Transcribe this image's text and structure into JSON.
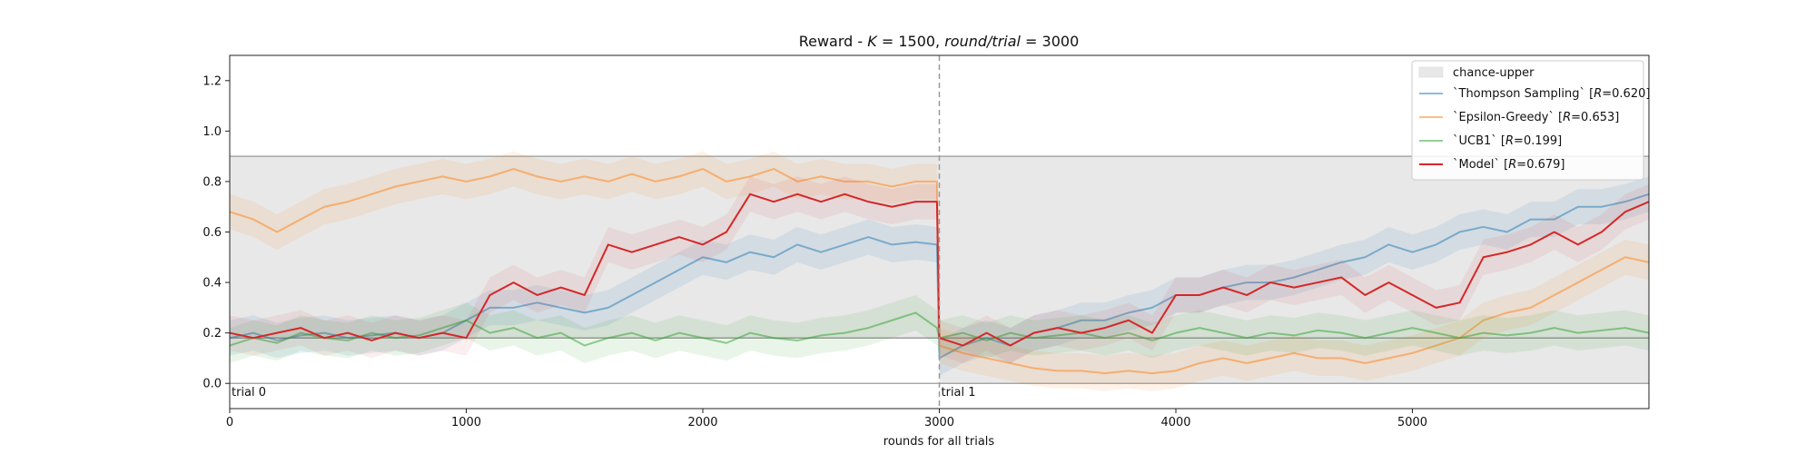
{
  "chart_data": {
    "type": "line",
    "title": "Reward - K = 1500, round/trial = 3000",
    "title_parts": {
      "prefix": "Reward - ",
      "k_var": "K",
      "k_val": " = 1500, ",
      "rt_var": "round/trial",
      "rt_val": " = 3000"
    },
    "xlabel": "rounds for all trials",
    "ylabel": "",
    "xlim": [
      0,
      6000
    ],
    "ylim": [
      -0.1,
      1.3
    ],
    "xticks": [
      0,
      1000,
      2000,
      3000,
      4000,
      5000
    ],
    "xtick_labels": [
      "0",
      "1000",
      "2000",
      "3000",
      "4000",
      "5000"
    ],
    "yticks": [
      0.0,
      0.2,
      0.4,
      0.6,
      0.8,
      1.0,
      1.2
    ],
    "ytick_labels": [
      "0.0",
      "0.2",
      "0.4",
      "0.6",
      "0.8",
      "1.0",
      "1.2"
    ],
    "grid": false,
    "legend_position": "top-right",
    "trial_boundaries": [
      0,
      3000
    ],
    "trial_labels": [
      "trial 0",
      "trial 1"
    ],
    "hlines": {
      "upper": 0.9,
      "lower": 0.0,
      "chance": 0.18
    },
    "band": {
      "name": "chance-upper",
      "from": 0.0,
      "to": 0.9,
      "start": 3000,
      "end": 6000,
      "fill_prefix_to": 0.18,
      "color": "#e8e8e8"
    },
    "series": [
      {
        "name": "`Thompson Sampling` [R=0.620]",
        "label_prefix": "`Thompson Sampling` [",
        "label_var": "R",
        "label_value": "=0.620]",
        "color": "#1f77b4",
        "x": [
          0,
          100,
          200,
          300,
          400,
          500,
          600,
          700,
          800,
          900,
          1000,
          1100,
          1200,
          1300,
          1400,
          1500,
          1600,
          1700,
          1800,
          1900,
          2000,
          2100,
          2200,
          2300,
          2400,
          2500,
          2600,
          2700,
          2800,
          2900,
          2990,
          3000,
          3100,
          3200,
          3300,
          3400,
          3500,
          3600,
          3700,
          3800,
          3900,
          4000,
          4100,
          4200,
          4300,
          4400,
          4500,
          4600,
          4700,
          4800,
          4900,
          5000,
          5100,
          5200,
          5300,
          5400,
          5500,
          5600,
          5700,
          5800,
          5900,
          6000
        ],
        "values": [
          0.18,
          0.2,
          0.17,
          0.19,
          0.2,
          0.18,
          0.19,
          0.2,
          0.18,
          0.2,
          0.25,
          0.3,
          0.3,
          0.32,
          0.3,
          0.28,
          0.3,
          0.35,
          0.4,
          0.45,
          0.5,
          0.48,
          0.52,
          0.5,
          0.55,
          0.52,
          0.55,
          0.58,
          0.55,
          0.56,
          0.55,
          0.1,
          0.15,
          0.18,
          0.15,
          0.2,
          0.22,
          0.25,
          0.25,
          0.28,
          0.3,
          0.35,
          0.35,
          0.38,
          0.4,
          0.4,
          0.42,
          0.45,
          0.48,
          0.5,
          0.55,
          0.52,
          0.55,
          0.6,
          0.62,
          0.6,
          0.65,
          0.65,
          0.7,
          0.7,
          0.72,
          0.75
        ]
      },
      {
        "name": "`Epsilon-Greedy` [R=0.653]",
        "label_prefix": "`Epsilon-Greedy` [",
        "label_var": "R",
        "label_value": "=0.653]",
        "color": "#ff7f0e",
        "x": [
          0,
          100,
          200,
          300,
          400,
          500,
          600,
          700,
          800,
          900,
          1000,
          1100,
          1200,
          1300,
          1400,
          1500,
          1600,
          1700,
          1800,
          1900,
          2000,
          2100,
          2200,
          2300,
          2400,
          2500,
          2600,
          2700,
          2800,
          2900,
          2990,
          3000,
          3100,
          3200,
          3300,
          3400,
          3500,
          3600,
          3700,
          3800,
          3900,
          4000,
          4100,
          4200,
          4300,
          4400,
          4500,
          4600,
          4700,
          4800,
          4900,
          5000,
          5100,
          5200,
          5300,
          5400,
          5500,
          5600,
          5700,
          5800,
          5900,
          6000
        ],
        "values": [
          0.68,
          0.65,
          0.6,
          0.65,
          0.7,
          0.72,
          0.75,
          0.78,
          0.8,
          0.82,
          0.8,
          0.82,
          0.85,
          0.82,
          0.8,
          0.82,
          0.8,
          0.83,
          0.8,
          0.82,
          0.85,
          0.8,
          0.82,
          0.85,
          0.8,
          0.82,
          0.8,
          0.8,
          0.78,
          0.8,
          0.8,
          0.15,
          0.12,
          0.1,
          0.08,
          0.06,
          0.05,
          0.05,
          0.04,
          0.05,
          0.04,
          0.05,
          0.08,
          0.1,
          0.08,
          0.1,
          0.12,
          0.1,
          0.1,
          0.08,
          0.1,
          0.12,
          0.15,
          0.18,
          0.25,
          0.28,
          0.3,
          0.35,
          0.4,
          0.45,
          0.5,
          0.48
        ]
      },
      {
        "name": "`UCB1` [R=0.199]",
        "label_prefix": "`UCB1` [",
        "label_var": "R",
        "label_value": "=0.199]",
        "color": "#2ca02c",
        "x": [
          0,
          100,
          200,
          300,
          400,
          500,
          600,
          700,
          800,
          900,
          1000,
          1100,
          1200,
          1300,
          1400,
          1500,
          1600,
          1700,
          1800,
          1900,
          2000,
          2100,
          2200,
          2300,
          2400,
          2500,
          2600,
          2700,
          2800,
          2900,
          2990,
          3000,
          3100,
          3200,
          3300,
          3400,
          3500,
          3600,
          3700,
          3800,
          3900,
          4000,
          4100,
          4200,
          4300,
          4400,
          4500,
          4600,
          4700,
          4800,
          4900,
          5000,
          5100,
          5200,
          5300,
          5400,
          5500,
          5600,
          5700,
          5800,
          5900,
          6000
        ],
        "values": [
          0.15,
          0.18,
          0.16,
          0.2,
          0.18,
          0.17,
          0.2,
          0.18,
          0.19,
          0.22,
          0.25,
          0.2,
          0.22,
          0.18,
          0.2,
          0.15,
          0.18,
          0.2,
          0.17,
          0.2,
          0.18,
          0.16,
          0.2,
          0.18,
          0.17,
          0.19,
          0.2,
          0.22,
          0.25,
          0.28,
          0.22,
          0.18,
          0.2,
          0.17,
          0.2,
          0.18,
          0.19,
          0.2,
          0.18,
          0.2,
          0.17,
          0.2,
          0.22,
          0.2,
          0.18,
          0.2,
          0.19,
          0.21,
          0.2,
          0.18,
          0.2,
          0.22,
          0.2,
          0.18,
          0.2,
          0.19,
          0.2,
          0.22,
          0.2,
          0.21,
          0.22,
          0.2
        ]
      },
      {
        "name": "`Model` [R=0.679]",
        "label_prefix": "`Model` [",
        "label_var": "R",
        "label_value": "=0.679]",
        "color": "#d62728",
        "x": [
          0,
          100,
          200,
          300,
          400,
          500,
          600,
          700,
          800,
          900,
          1000,
          1100,
          1200,
          1300,
          1400,
          1500,
          1600,
          1700,
          1800,
          1900,
          2000,
          2100,
          2200,
          2300,
          2400,
          2500,
          2600,
          2700,
          2800,
          2900,
          2990,
          3000,
          3100,
          3200,
          3300,
          3400,
          3500,
          3600,
          3700,
          3800,
          3900,
          4000,
          4100,
          4200,
          4300,
          4400,
          4500,
          4600,
          4700,
          4800,
          4900,
          5000,
          5100,
          5200,
          5300,
          5400,
          5500,
          5600,
          5700,
          5800,
          5900,
          6000
        ],
        "values": [
          0.2,
          0.18,
          0.2,
          0.22,
          0.18,
          0.2,
          0.17,
          0.2,
          0.18,
          0.2,
          0.18,
          0.35,
          0.4,
          0.35,
          0.38,
          0.35,
          0.55,
          0.52,
          0.55,
          0.58,
          0.55,
          0.6,
          0.75,
          0.72,
          0.75,
          0.72,
          0.75,
          0.72,
          0.7,
          0.72,
          0.72,
          0.18,
          0.15,
          0.2,
          0.15,
          0.2,
          0.22,
          0.2,
          0.22,
          0.25,
          0.2,
          0.35,
          0.35,
          0.38,
          0.35,
          0.4,
          0.38,
          0.4,
          0.42,
          0.35,
          0.4,
          0.35,
          0.3,
          0.32,
          0.5,
          0.52,
          0.55,
          0.6,
          0.55,
          0.6,
          0.68,
          0.72
        ]
      }
    ]
  }
}
